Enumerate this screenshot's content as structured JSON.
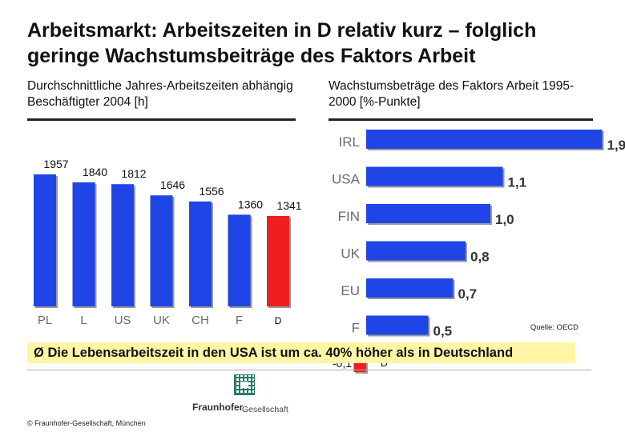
{
  "slide": {
    "title": "Arbeitsmarkt: Arbeitszeiten in D relativ kurz – folglich geringe Wachstumsbeiträge des Faktors Arbeit",
    "conclusion": "Die Lebensarbeitszeit in den USA ist um ca. 40% höher als in Deutschland",
    "conclusion_bullet": "Ø",
    "source": "Quelle: OECD",
    "copyright": "© Fraunhofer-Gesellschaft, München",
    "logo_word": "Fraunhofer",
    "logo_word2": "Gesellschaft"
  },
  "colors": {
    "primary_bar": "#1f45e6",
    "highlight_bar": "#f01e1e",
    "conclusion_bg": "#fff6a5"
  },
  "chart_data": [
    {
      "type": "bar",
      "orientation": "vertical",
      "title": "Durchschnittliche Jahres-Arbeitszeiten abhängig Beschäftigter 2004 [h]",
      "categories": [
        "PL",
        "L",
        "US",
        "UK",
        "CH",
        "F",
        "D"
      ],
      "values": [
        1957,
        1840,
        1812,
        1646,
        1556,
        1360,
        1341
      ],
      "value_labels": [
        "1957",
        "1840",
        "1812",
        "1646",
        "1556",
        "1360",
        "1341"
      ],
      "highlight": "D",
      "ylim": [
        0,
        2000
      ]
    },
    {
      "type": "bar",
      "orientation": "horizontal",
      "title": "Wachstumsbeträge des Faktors Arbeit 1995-2000 [%-Punkte]",
      "categories": [
        "IRL",
        "USA",
        "FIN",
        "UK",
        "EU",
        "F",
        "D"
      ],
      "values": [
        1.9,
        1.1,
        1.0,
        0.8,
        0.7,
        0.5,
        -0.1
      ],
      "value_labels": [
        "1,9",
        "1,1",
        "1,0",
        "0,8",
        "0,7",
        "0,5",
        "-0,1"
      ],
      "highlight": "D",
      "xlim": [
        -0.1,
        1.9
      ]
    }
  ]
}
